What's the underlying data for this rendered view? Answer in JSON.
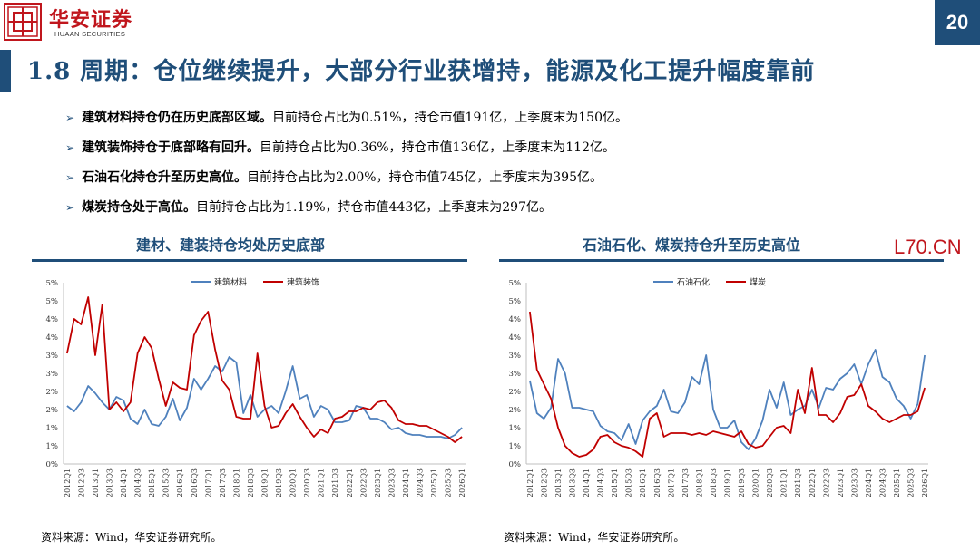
{
  "header": {
    "brand_cn": "华安证券",
    "brand_en": "HUAAN SECURITIES",
    "page_number": "20",
    "title": "1.8 周期：仓位继续提升，大部分行业获增持，能源及化工提升幅度靠前",
    "brand_color": "#c0161d",
    "accent_color": "#1f4e79",
    "logo_icon": "huaan-logo-icon"
  },
  "bullets": [
    {
      "bold": "建筑材料持仓仍在历史底部区域。",
      "text": "目前持仓占比为0.51%，持仓市值191亿，上季度末为150亿。"
    },
    {
      "bold": "建筑装饰持仓于底部略有回升。",
      "text": "目前持仓占比为0.36%，持仓市值136亿，上季度末为112亿。"
    },
    {
      "bold": "石油石化持仓升至历史高位。",
      "text": "目前持仓占比为2.00%，持仓市值745亿，上季度末为395亿。"
    },
    {
      "bold": "煤炭持仓处于高位。",
      "text": "目前持仓占比为1.19%，持仓市值443亿，上季度末为297亿。"
    }
  ],
  "watermark": "L70.CN",
  "chart_data": [
    {
      "type": "line",
      "title": "建材、建装持仓均处历史底部",
      "source": "资料来源：Wind，华安证券研究所。",
      "x": [
        "2012Q1",
        "2012Q2",
        "2012Q3",
        "2012Q4",
        "2013Q1",
        "2013Q2",
        "2013Q3",
        "2013Q4",
        "2014Q1",
        "2014Q2",
        "2014Q3",
        "2014Q4",
        "2015Q1",
        "2015Q2",
        "2015Q3",
        "2015Q4",
        "2016Q1",
        "2016Q2",
        "2016Q3",
        "2016Q4",
        "2017Q1",
        "2017Q2",
        "2017Q3",
        "2017Q4",
        "2018Q1",
        "2018Q2",
        "2018Q3",
        "2018Q4",
        "2019Q1",
        "2019Q2",
        "2019Q3",
        "2019Q4",
        "2020Q1",
        "2020Q2",
        "2020Q3",
        "2020Q4",
        "2021Q1",
        "2021Q2",
        "2021Q3",
        "2021Q4",
        "2022Q1",
        "2022Q2",
        "2022Q3",
        "2022Q4",
        "2023Q1",
        "2023Q2",
        "2023Q3",
        "2023Q4",
        "2024Q1",
        "2024Q2",
        "2024Q3",
        "2024Q4",
        "2025Q1",
        "2025Q2",
        "2025Q3",
        "2025Q4",
        "2026Q1"
      ],
      "x_tick_labels": [
        "2012Q1",
        "2012Q3",
        "2013Q1",
        "2013Q3",
        "2014Q1",
        "2014Q3",
        "2015Q1",
        "2015Q3",
        "2016Q1",
        "2016Q3",
        "2017Q1",
        "2017Q3",
        "2018Q1",
        "2018Q3",
        "2019Q1",
        "2019Q3",
        "2020Q1",
        "2020Q3",
        "2021Q1",
        "2021Q3",
        "2022Q1",
        "2022Q3",
        "2023Q1",
        "2023Q3",
        "2024Q1",
        "2024Q3",
        "2025Q1",
        "2025Q3",
        "2026Q1"
      ],
      "y_tick_labels": [
        "0%",
        "1%",
        "1%",
        "2%",
        "2%",
        "3%",
        "3%",
        "4%",
        "4%",
        "5%",
        "5%"
      ],
      "ylim": [
        0,
        5
      ],
      "legend_position": "top",
      "grid": false,
      "series": [
        {
          "name": "建筑材料",
          "color": "#4f81bd",
          "values": [
            1.6,
            1.45,
            1.7,
            2.15,
            1.95,
            1.7,
            1.5,
            1.85,
            1.75,
            1.25,
            1.1,
            1.5,
            1.1,
            1.05,
            1.3,
            1.8,
            1.2,
            1.55,
            2.35,
            2.05,
            2.35,
            2.7,
            2.55,
            2.95,
            2.8,
            1.4,
            1.9,
            1.3,
            1.5,
            1.6,
            1.4,
            2.0,
            2.7,
            1.8,
            1.9,
            1.3,
            1.6,
            1.5,
            1.15,
            1.15,
            1.2,
            1.6,
            1.55,
            1.25,
            1.25,
            1.15,
            0.95,
            1.0,
            0.85,
            0.8,
            0.8,
            0.75,
            0.75,
            0.75,
            0.7,
            0.8,
            1.0
          ]
        },
        {
          "name": "建筑装饰",
          "color": "#c00000",
          "values": [
            3.05,
            4.0,
            3.85,
            4.6,
            3.0,
            4.4,
            1.5,
            1.7,
            1.45,
            1.7,
            3.05,
            3.5,
            3.2,
            2.35,
            1.6,
            2.25,
            2.1,
            2.05,
            3.55,
            3.95,
            4.2,
            3.15,
            2.3,
            2.05,
            1.3,
            1.25,
            1.25,
            3.05,
            1.6,
            1.0,
            1.05,
            1.4,
            1.65,
            1.3,
            1.0,
            0.75,
            0.95,
            0.85,
            1.25,
            1.3,
            1.45,
            1.45,
            1.55,
            1.5,
            1.7,
            1.75,
            1.55,
            1.2,
            1.1,
            1.1,
            1.05,
            1.05,
            0.95,
            0.85,
            0.75,
            0.6,
            0.75
          ]
        }
      ]
    },
    {
      "type": "line",
      "title": "石油石化、煤炭持仓升至历史高位",
      "source": "资料来源：Wind，华安证券研究所。",
      "x": [
        "2012Q1",
        "2012Q2",
        "2012Q3",
        "2012Q4",
        "2013Q1",
        "2013Q2",
        "2013Q3",
        "2013Q4",
        "2014Q1",
        "2014Q2",
        "2014Q3",
        "2014Q4",
        "2015Q1",
        "2015Q2",
        "2015Q3",
        "2015Q4",
        "2016Q1",
        "2016Q2",
        "2016Q3",
        "2016Q4",
        "2017Q1",
        "2017Q2",
        "2017Q3",
        "2017Q4",
        "2018Q1",
        "2018Q2",
        "2018Q3",
        "2018Q4",
        "2019Q1",
        "2019Q2",
        "2019Q3",
        "2019Q4",
        "2020Q1",
        "2020Q2",
        "2020Q3",
        "2020Q4",
        "2021Q1",
        "2021Q2",
        "2021Q3",
        "2021Q4",
        "2022Q1",
        "2022Q2",
        "2022Q3",
        "2022Q4",
        "2023Q1",
        "2023Q2",
        "2023Q3",
        "2023Q4",
        "2024Q1",
        "2024Q2",
        "2024Q3",
        "2024Q4",
        "2025Q1",
        "2025Q2",
        "2025Q3",
        "2025Q4",
        "2026Q1"
      ],
      "x_tick_labels": [
        "2012Q1",
        "2012Q3",
        "2013Q1",
        "2013Q3",
        "2014Q1",
        "2014Q3",
        "2015Q1",
        "2015Q3",
        "2016Q1",
        "2016Q3",
        "2017Q1",
        "2017Q3",
        "2018Q1",
        "2018Q3",
        "2019Q1",
        "2019Q3",
        "2020Q1",
        "2020Q3",
        "2021Q1",
        "2021Q3",
        "2022Q1",
        "2022Q3",
        "2023Q1",
        "2023Q3",
        "2024Q1",
        "2024Q3",
        "2025Q1",
        "2025Q3",
        "2026Q1"
      ],
      "y_tick_labels": [
        "0%",
        "1%",
        "1%",
        "2%",
        "2%",
        "3%",
        "3%",
        "4%",
        "4%",
        "5%",
        "5%"
      ],
      "ylim": [
        0,
        5
      ],
      "legend_position": "top",
      "grid": false,
      "series": [
        {
          "name": "石油石化",
          "color": "#4f81bd",
          "values": [
            2.3,
            1.4,
            1.25,
            1.55,
            2.9,
            2.5,
            1.55,
            1.55,
            1.5,
            1.45,
            1.05,
            0.9,
            0.85,
            0.65,
            1.1,
            0.55,
            1.2,
            1.45,
            1.6,
            2.05,
            1.45,
            1.4,
            1.7,
            2.4,
            2.2,
            3.0,
            1.5,
            1.0,
            1.0,
            1.2,
            0.6,
            0.4,
            0.7,
            1.2,
            2.05,
            1.55,
            2.25,
            1.35,
            1.5,
            1.6,
            2.05,
            1.55,
            2.1,
            2.05,
            2.35,
            2.5,
            2.75,
            2.2,
            2.75,
            3.15,
            2.4,
            2.25,
            1.8,
            1.6,
            1.25,
            1.65,
            3.0
          ]
        },
        {
          "name": "煤炭",
          "color": "#c00000",
          "values": [
            4.2,
            2.6,
            2.2,
            1.8,
            1.0,
            0.5,
            0.3,
            0.2,
            0.25,
            0.4,
            0.75,
            0.8,
            0.6,
            0.5,
            0.45,
            0.35,
            0.2,
            1.25,
            1.4,
            0.75,
            0.85,
            0.85,
            0.85,
            0.8,
            0.85,
            0.8,
            0.9,
            0.85,
            0.8,
            0.75,
            0.9,
            0.55,
            0.45,
            0.5,
            0.75,
            1.0,
            1.05,
            0.85,
            2.05,
            1.4,
            2.65,
            1.35,
            1.35,
            1.15,
            1.4,
            1.85,
            1.9,
            2.2,
            1.6,
            1.45,
            1.25,
            1.15,
            1.25,
            1.35,
            1.35,
            1.45,
            2.1
          ]
        }
      ]
    }
  ]
}
